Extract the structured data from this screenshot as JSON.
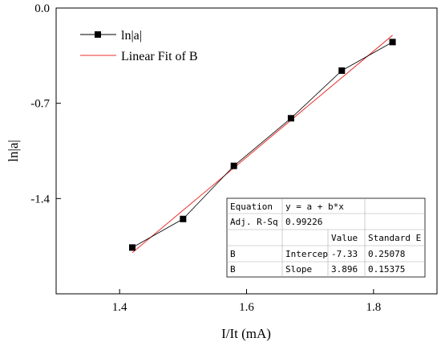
{
  "chart_data": {
    "type": "scatter",
    "title": "",
    "xlabel": "I/It (mA)",
    "ylabel": "ln|a|",
    "xlim": [
      1.3,
      1.9
    ],
    "ylim": [
      -2.1,
      0.0
    ],
    "x_ticks": [
      "1.4",
      "1.6",
      "1.8"
    ],
    "x_tick_values": [
      1.4,
      1.6,
      1.8
    ],
    "y_ticks": [
      "0.0",
      "-0.7",
      "-1.4"
    ],
    "y_tick_values": [
      0.0,
      -0.7,
      -1.4
    ],
    "grid": false,
    "legend_position": "top-left",
    "series": [
      {
        "name": "ln|a|",
        "style": "line-with-square-markers",
        "color": "#000000",
        "x": [
          1.42,
          1.5,
          1.58,
          1.67,
          1.75,
          1.83
        ],
        "y": [
          -1.76,
          -1.55,
          -1.16,
          -0.81,
          -0.46,
          -0.25
        ]
      },
      {
        "name": "Linear Fit of B",
        "style": "line",
        "color": "#e8322d",
        "x": [
          1.42,
          1.83
        ],
        "y": [
          -1.7976,
          -0.2002
        ]
      }
    ],
    "fit_table": {
      "equation_label": "Equation",
      "equation_value": "y = a + b*x",
      "adjr_label": "Adj. R-Sq",
      "adjr_value": "0.99226",
      "col_value": "Value",
      "col_stderr": "Standard E",
      "rows": [
        {
          "group": "B",
          "param": "Intercep",
          "value": "-7.33",
          "stderr": "0.25078"
        },
        {
          "group": "B",
          "param": "Slope",
          "value": "3.896",
          "stderr": "0.15375"
        }
      ]
    }
  }
}
